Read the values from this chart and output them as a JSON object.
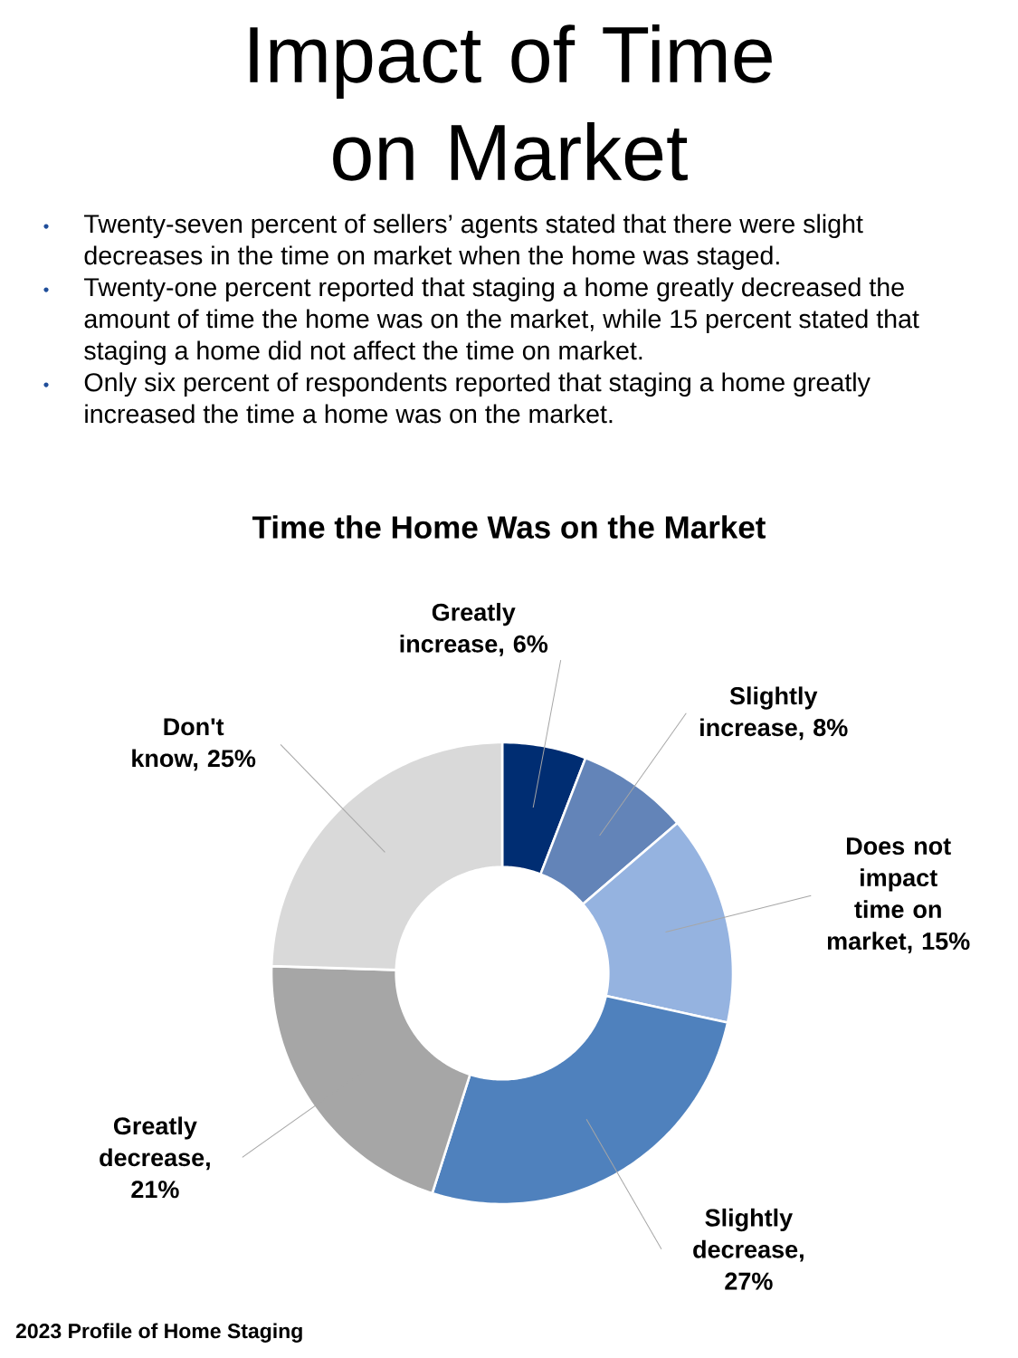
{
  "chart_data": {
    "type": "donut",
    "title": "Impact of Time on Market",
    "subtitle": "Time the Home Was on the Market",
    "categories": [
      "Greatly increase, 6%",
      "Slightly increase, 8%",
      "Does not impact time on market, 15%",
      "Slightly decrease, 27%",
      "Greatly decrease, 21%",
      "Don't know, 25%"
    ],
    "values": [
      6,
      8,
      15,
      27,
      21,
      25
    ],
    "colors": [
      "#002d72",
      "#6384b8",
      "#95b3e0",
      "#4f81bd",
      "#a6a6a6",
      "#d9d9d9"
    ],
    "annotations": [
      "Twenty-seven percent of sellers’ agents stated that there were slight decreases in the time on market when the home was staged.",
      "Twenty-one percent reported that staging a home greatly decreased the amount of time the home was on the market, while 15 percent stated that staging a home did not affect the time on market.",
      "Only six percent of respondents reported that staging a home greatly increased the time a home was on the market.",
      "2023 Profile of Home Staging"
    ]
  }
}
